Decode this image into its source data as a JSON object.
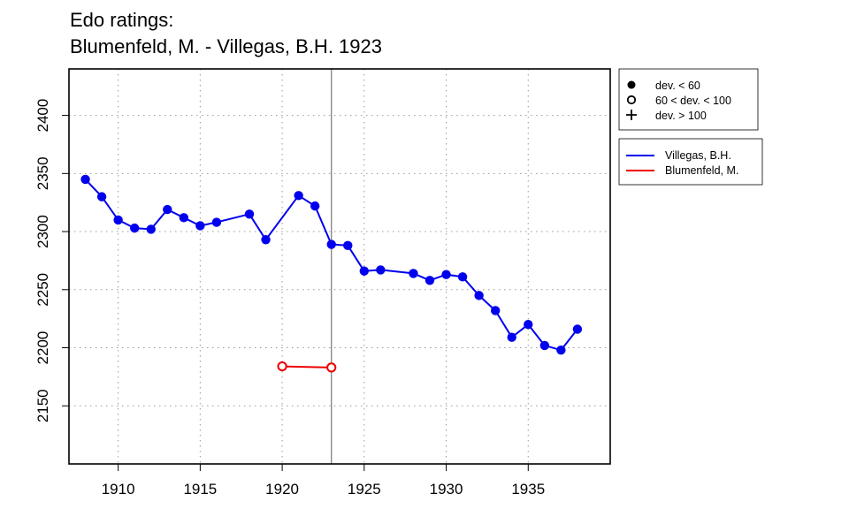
{
  "chart_data": {
    "type": "line",
    "title": [
      "Edo ratings:",
      "Blumenfeld, M. - Villegas, B.H. 1923"
    ],
    "xlabel": "",
    "ylabel": "",
    "xlim": [
      1907,
      1940
    ],
    "ylim": [
      2100,
      2440
    ],
    "x_ticks": [
      "1910",
      "1915",
      "1920",
      "1925",
      "1930",
      "1935"
    ],
    "y_ticks": [
      "2150",
      "2200",
      "2250",
      "2300",
      "2350",
      "2400"
    ],
    "grid": true,
    "reference_line_x": 1923,
    "series": [
      {
        "name": "Villegas, B.H.",
        "color": "#0000ee",
        "x": [
          1908,
          1909,
          1910,
          1911,
          1912,
          1913,
          1914,
          1915,
          1916,
          1918,
          1919,
          1921,
          1922,
          1923,
          1924,
          1925,
          1926,
          1928,
          1929,
          1930,
          1931,
          1932,
          1933,
          1934,
          1935,
          1936,
          1937,
          1938
        ],
        "y": [
          2345,
          2330,
          2310,
          2303,
          2302,
          2319,
          2312,
          2305,
          2308,
          2315,
          2293,
          2331,
          2322,
          2289,
          2288,
          2266,
          2267,
          2264,
          2258,
          2263,
          2261,
          2245,
          2232,
          2209,
          2220,
          2202,
          2198,
          2216
        ],
        "markers": "filled"
      },
      {
        "name": "Blumenfeld, M.",
        "color": "#ee0000",
        "x": [
          1920,
          1923
        ],
        "y": [
          2184,
          2183
        ],
        "markers": "open"
      }
    ],
    "marker_legend": [
      "dev. < 60",
      "60 < dev. < 100",
      "dev. > 100"
    ],
    "legend_position": "right"
  }
}
